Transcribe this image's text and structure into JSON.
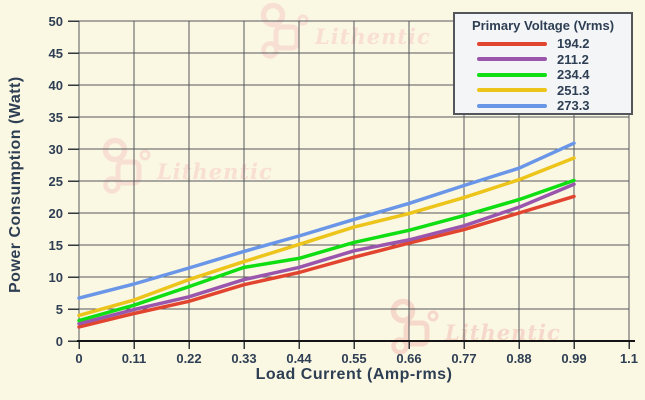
{
  "chart_data": {
    "type": "line",
    "title": "",
    "xlabel": "Load Current (Amp-rms)",
    "ylabel": "Power Consumption (Watt)",
    "xlim": [
      0,
      1.1
    ],
    "ylim": [
      0,
      50
    ],
    "x_tick_labels": [
      "0",
      "0.11",
      "0.22",
      "0.33",
      "0.44",
      "0.55",
      "0.66",
      "0.77",
      "0.88",
      "0.99",
      "1.1"
    ],
    "x_ticks": [
      0,
      0.11,
      0.22,
      0.33,
      0.44,
      0.55,
      0.66,
      0.77,
      0.88,
      0.99,
      1.1
    ],
    "y_ticks": [
      0,
      5,
      10,
      15,
      20,
      25,
      30,
      35,
      40,
      45,
      50
    ],
    "grid": true,
    "legend": {
      "title": "Primary Voltage (Vrms)",
      "position": "top-right"
    },
    "x": [
      0,
      0.11,
      0.22,
      0.33,
      0.44,
      0.55,
      0.66,
      0.77,
      0.88,
      0.99
    ],
    "series": [
      {
        "name": "194.2",
        "color": "#E2452F",
        "values": [
          2.2,
          4.3,
          6.2,
          8.8,
          10.7,
          13.1,
          15.3,
          17.4,
          20.0,
          22.6
        ]
      },
      {
        "name": "211.2",
        "color": "#9956AC",
        "values": [
          2.7,
          4.9,
          6.9,
          9.6,
          11.5,
          14.1,
          15.8,
          18.0,
          20.9,
          24.5
        ]
      },
      {
        "name": "234.4",
        "color": "#0FDE12",
        "values": [
          3.2,
          5.6,
          8.5,
          11.5,
          12.9,
          15.4,
          17.3,
          19.6,
          22.1,
          25.1
        ]
      },
      {
        "name": "251.3",
        "color": "#EDC41A",
        "values": [
          4.0,
          6.4,
          9.6,
          12.4,
          15.1,
          17.8,
          19.9,
          22.4,
          25.2,
          28.6
        ]
      },
      {
        "name": "273.3",
        "color": "#6A96E8",
        "values": [
          6.7,
          8.9,
          11.4,
          14.0,
          16.4,
          19.0,
          21.5,
          24.3,
          27.0,
          30.9
        ]
      }
    ]
  },
  "watermark": {
    "text": "Lithentic",
    "color": "#F8DFD4"
  },
  "colors": {
    "background": "#FAF7E3",
    "grid": "#55585C",
    "axis": "#141414",
    "text": "#2E3F54",
    "legend_bg": "#F4F5F7",
    "legend_border": "#53575C"
  }
}
